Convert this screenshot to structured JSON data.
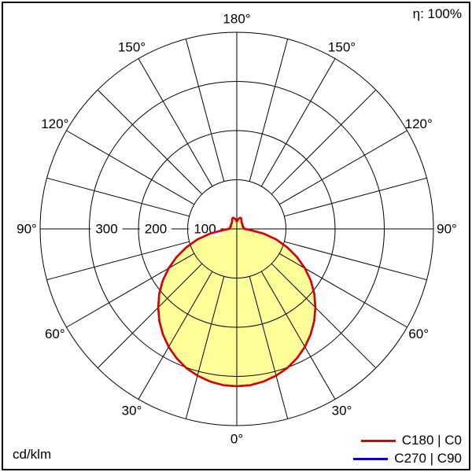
{
  "meta": {
    "efficiency_label": "η: 100%",
    "unit_label": "cd/klm"
  },
  "chart_data": {
    "type": "polar",
    "description": "Luminous intensity distribution curve of a luminaire, polar diagram",
    "unit": "cd/klm",
    "efficiency_percent": 100,
    "angle_labels": [
      "0°",
      "30°",
      "60°",
      "90°",
      "120°",
      "150°",
      "180°"
    ],
    "radial_ticks": [
      100,
      200,
      300
    ],
    "radial_max": 400,
    "spoke_step_deg": 15,
    "grid": true,
    "legend_position": "bottom-right",
    "fill_color": "#ffff99",
    "series": [
      {
        "name": "C180 | C0",
        "color": "#dd0000",
        "symmetric": true,
        "gamma_deg": [
          0,
          5,
          10,
          15,
          20,
          25,
          30,
          35,
          40,
          45,
          50,
          55,
          60,
          65,
          70,
          75,
          80,
          85,
          90,
          95,
          100,
          105,
          110,
          115,
          120,
          125,
          130,
          135,
          140,
          145,
          150,
          155,
          160,
          165,
          170,
          175,
          180
        ],
        "values_cd_per_klm": [
          320,
          319,
          315,
          309,
          301,
          290,
          277,
          262,
          245,
          226,
          206,
          184,
          160,
          135,
          109,
          83,
          56,
          28,
          16,
          15,
          14,
          14,
          13,
          13,
          14,
          14,
          15,
          15,
          16,
          17,
          19,
          22,
          24,
          23,
          21,
          18,
          15
        ]
      },
      {
        "name": "C270 | C90",
        "color": "#0000cc",
        "symmetric": true,
        "gamma_deg": [
          0,
          5,
          10,
          15,
          20,
          25,
          30,
          35,
          40,
          45,
          50,
          55,
          60,
          65,
          70,
          75,
          80,
          85,
          90,
          95,
          100,
          105,
          110,
          115,
          120,
          125,
          130,
          135,
          140,
          145,
          150,
          155,
          160,
          165,
          170,
          175,
          180
        ],
        "values_cd_per_klm": [
          320,
          319,
          315,
          309,
          301,
          290,
          277,
          262,
          245,
          226,
          206,
          184,
          160,
          135,
          109,
          83,
          56,
          28,
          16,
          15,
          14,
          14,
          13,
          13,
          14,
          14,
          15,
          15,
          16,
          17,
          19,
          22,
          24,
          23,
          21,
          18,
          15
        ]
      }
    ]
  }
}
